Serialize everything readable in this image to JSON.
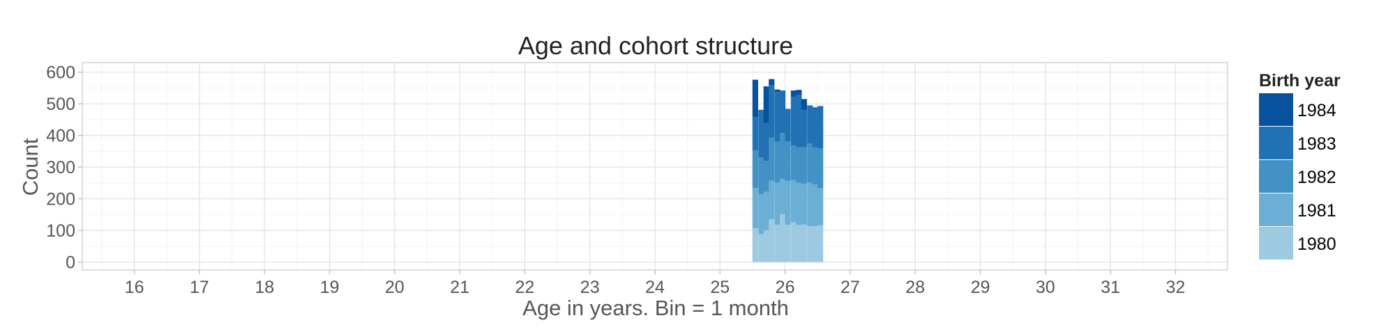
{
  "chart_data": {
    "type": "bar",
    "stacked": true,
    "title": "Age and cohort structure",
    "xlabel": "Age in years. Bin = 1 month",
    "ylabel": "Count",
    "xlim": [
      15.2,
      32.8
    ],
    "ylim": [
      -25,
      630
    ],
    "x_ticks": [
      16,
      17,
      18,
      19,
      20,
      21,
      22,
      23,
      24,
      25,
      26,
      27,
      28,
      29,
      30,
      31,
      32
    ],
    "y_ticks": [
      0,
      100,
      200,
      300,
      400,
      500,
      600
    ],
    "grid": true,
    "bin_width": 0.0833,
    "x": [
      25.54,
      25.63,
      25.71,
      25.79,
      25.88,
      25.96,
      26.04,
      26.13,
      26.21,
      26.29,
      26.38,
      26.46,
      26.54
    ],
    "legend": {
      "title": "Birth year",
      "placement": "right"
    },
    "series": [
      {
        "name": "1980",
        "color": "#9ecae1",
        "values": [
          107,
          88,
          100,
          135,
          118,
          151,
          118,
          125,
          117,
          119,
          113,
          114,
          116
        ]
      },
      {
        "name": "1981",
        "color": "#6baed6",
        "values": [
          127,
          126,
          122,
          122,
          133,
          112,
          138,
          134,
          134,
          128,
          138,
          131,
          117
        ]
      },
      {
        "name": "1982",
        "color": "#4292c6",
        "values": [
          119,
          117,
          98,
          136,
          129,
          145,
          125,
          109,
          112,
          116,
          124,
          118,
          126
        ]
      },
      {
        "name": "1983",
        "color": "#2171b5",
        "values": [
          105,
          150,
          120,
          165,
          157,
          134,
          103,
          154,
          165,
          117,
          120,
          126,
          134
        ]
      },
      {
        "name": "1984",
        "color": "#08519c",
        "values": [
          118,
          0,
          115,
          20,
          8,
          0,
          0,
          20,
          16,
          35,
          0,
          0,
          0
        ]
      }
    ]
  }
}
